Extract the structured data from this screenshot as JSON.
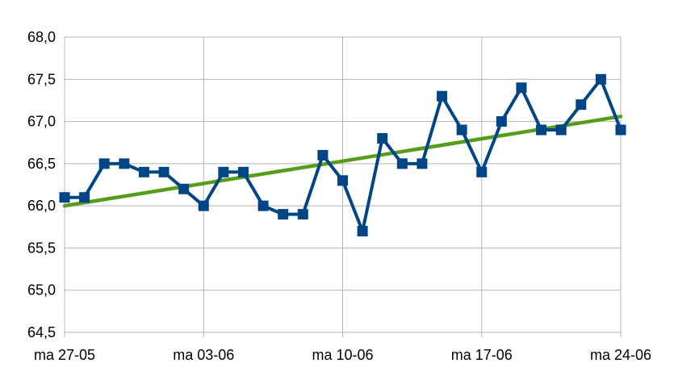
{
  "chart_data": {
    "type": "line",
    "title": "",
    "xlabel": "",
    "ylabel": "",
    "ylim": [
      64.5,
      68.0
    ],
    "yticks": [
      64.5,
      65.0,
      65.5,
      66.0,
      66.5,
      67.0,
      67.5,
      68.0
    ],
    "ytick_labels": [
      "64,5",
      "65,0",
      "65,5",
      "66,0",
      "66,5",
      "67,0",
      "67,5",
      "68,0"
    ],
    "x": [
      "2024-05-27",
      "2024-05-28",
      "2024-05-29",
      "2024-05-30",
      "2024-05-31",
      "2024-06-01",
      "2024-06-02",
      "2024-06-03",
      "2024-06-04",
      "2024-06-05",
      "2024-06-06",
      "2024-06-07",
      "2024-06-08",
      "2024-06-09",
      "2024-06-10",
      "2024-06-11",
      "2024-06-12",
      "2024-06-13",
      "2024-06-14",
      "2024-06-15",
      "2024-06-16",
      "2024-06-17",
      "2024-06-18",
      "2024-06-19",
      "2024-06-20",
      "2024-06-21",
      "2024-06-22",
      "2024-06-23",
      "2024-06-24"
    ],
    "xtick_dates": [
      "2024-05-27",
      "2024-06-03",
      "2024-06-10",
      "2024-06-17",
      "2024-06-24"
    ],
    "xtick_labels": [
      "ma 27-05",
      "ma 03-06",
      "ma 10-06",
      "ma 17-06",
      "ma 24-06"
    ],
    "grid": true,
    "legend": "none",
    "series": [
      {
        "values": [
          66.1,
          66.1,
          66.5,
          66.5,
          66.4,
          66.4,
          66.2,
          66.0,
          66.4,
          66.4,
          66.0,
          65.9,
          65.9,
          66.6,
          66.3,
          65.7,
          66.8,
          66.5,
          66.5,
          67.3,
          66.9,
          66.4,
          67.0,
          67.4,
          66.9,
          66.9,
          67.2,
          67.5,
          66.9
        ],
        "color": "#004586",
        "marker": "square"
      }
    ],
    "trendline": {
      "type": "linear",
      "start": {
        "x": "2024-05-27",
        "y": 66.0
      },
      "end": {
        "x": "2024-06-24",
        "y": 67.06
      },
      "color": "#579d1c"
    },
    "grid_color": "#b3b3b3"
  }
}
